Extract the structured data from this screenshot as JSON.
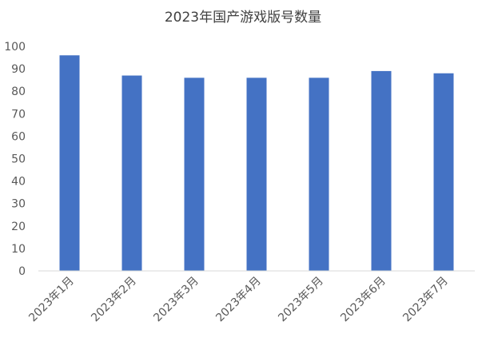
{
  "chart_data": {
    "type": "bar",
    "title": "2023年国产游戏版号数量",
    "xlabel": "",
    "ylabel": "",
    "categories": [
      "2023年1月",
      "2023年2月",
      "2023年3月",
      "2023年4月",
      "2023年5月",
      "2023年6月",
      "2023年7月"
    ],
    "values": [
      96,
      87,
      86,
      86,
      86,
      89,
      88
    ],
    "ylim": [
      0,
      100
    ],
    "yticks": [
      "0",
      "10",
      "20",
      "30",
      "40",
      "50",
      "60",
      "70",
      "80",
      "90",
      "100"
    ],
    "grid": false,
    "legend": "none",
    "bar_color": "#4472C4"
  }
}
